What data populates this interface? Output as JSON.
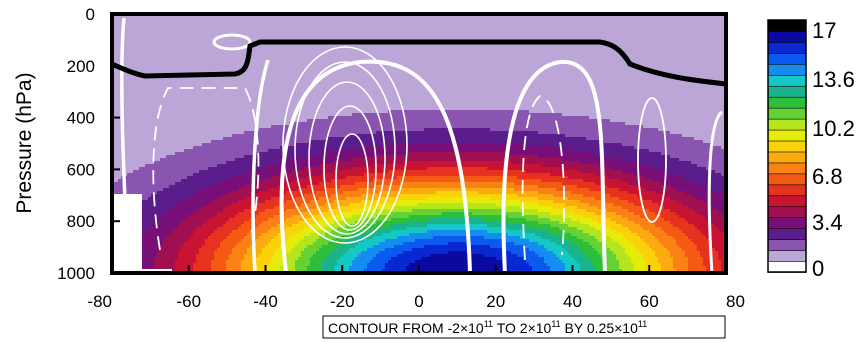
{
  "chart_data": {
    "type": "heatmap",
    "ylabel": "Pressure (hPa)",
    "xlabel": "",
    "xlim": [
      -80,
      80
    ],
    "ylim": [
      1000,
      0
    ],
    "x_ticks": [
      {
        "value": -80,
        "label": "-80"
      },
      {
        "value": -60,
        "label": "-60"
      },
      {
        "value": -40,
        "label": "-40"
      },
      {
        "value": -20,
        "label": "-20"
      },
      {
        "value": 0,
        "label": "0"
      },
      {
        "value": 20,
        "label": "20"
      },
      {
        "value": 40,
        "label": "40"
      },
      {
        "value": 60,
        "label": "60"
      },
      {
        "value": 80,
        "label": "80"
      }
    ],
    "y_ticks": [
      {
        "value": 0,
        "label": "0"
      },
      {
        "value": 200,
        "label": "200"
      },
      {
        "value": 400,
        "label": "400"
      },
      {
        "value": 600,
        "label": "600"
      },
      {
        "value": 800,
        "label": "800"
      },
      {
        "value": 1000,
        "label": "1000"
      }
    ],
    "colorbar": {
      "min": 0,
      "max": 17,
      "labels": [
        "17",
        "13.6",
        "10.2",
        "6.8",
        "3.4",
        "0"
      ],
      "colors": [
        "#ffffff",
        "#bca6d8",
        "#8a55b0",
        "#5c1d8c",
        "#780f78",
        "#a00f50",
        "#c81432",
        "#e6321e",
        "#f55a14",
        "#fa8214",
        "#fbaa10",
        "#fbd20a",
        "#e6eb0a",
        "#b4e61e",
        "#64d232",
        "#2dbe3c",
        "#19b48c",
        "#14c8c8",
        "#148cf0",
        "#0a5af0",
        "#0a28d2",
        "#0a0aa0",
        "#000000"
      ]
    },
    "field": {
      "description_of_peak": "strongest values near 10 latitude at 1000 hPa",
      "peak_lat": 10,
      "peak_level_hPa": 1000,
      "peak_value": 17,
      "upper_background_value": 0.5
    },
    "colors": {
      "black_contour": "#000000",
      "streamfunction_contours": "#ffffff"
    },
    "note": {
      "prefix": "CONTOUR FROM -2×10",
      "exp1": "11",
      "mid": " TO 2×10",
      "exp2": "11",
      "mid2": " BY 0.25×10",
      "exp3": "11"
    }
  }
}
